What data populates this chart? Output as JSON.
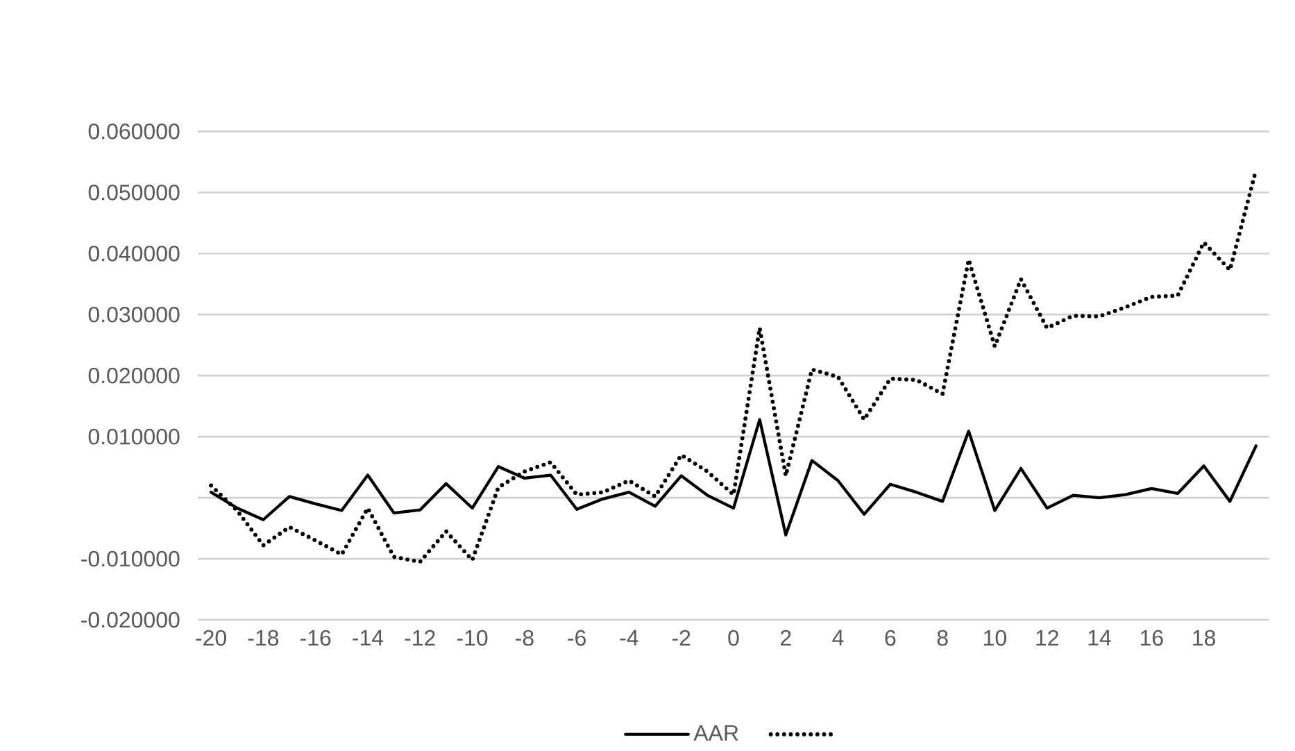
{
  "chart_data": {
    "type": "line",
    "categories": [
      "-20",
      null,
      "-18",
      null,
      "-16",
      null,
      "-14",
      null,
      "-12",
      null,
      "-10",
      null,
      "-8",
      null,
      "-6",
      null,
      "-4",
      null,
      "-2",
      null,
      "0",
      null,
      "2",
      null,
      "4",
      null,
      "6",
      null,
      "8",
      null,
      "10",
      null,
      "12",
      null,
      "14",
      null,
      "16",
      null,
      "18",
      null,
      null
    ],
    "series": [
      {
        "name": "AAR",
        "color": "#000000",
        "line_style": "solid",
        "values": [
          0.0009,
          -0.0017,
          -0.0036,
          0.0002,
          -0.001,
          -0.0021,
          0.0037,
          -0.0025,
          -0.002,
          0.0023,
          -0.0017,
          0.0051,
          0.0032,
          0.0037,
          -0.0019,
          -0.0002,
          0.0009,
          -0.0014,
          0.0036,
          0.0004,
          -0.0017,
          0.0128,
          -0.0061,
          0.0061,
          0.0028,
          -0.0027,
          0.0022,
          0.0009,
          -0.0006,
          0.0109,
          -0.0021,
          0.0048,
          -0.0017,
          0.0004,
          0.0,
          0.0005,
          0.0015,
          0.0007,
          0.0052,
          -0.0006,
          0.0085
        ]
      },
      {
        "color": "#000000",
        "line_style": "dotted",
        "values": [
          0.002,
          -0.0021,
          -0.0078,
          -0.0048,
          -0.007,
          -0.0093,
          -0.0017,
          -0.0097,
          -0.0105,
          -0.0055,
          -0.0102,
          0.0017,
          0.0043,
          0.0058,
          0.0005,
          0.0009,
          0.0028,
          0.0002,
          0.007,
          0.0043,
          0.0005,
          0.0278,
          0.0036,
          0.021,
          0.0198,
          0.0128,
          0.0195,
          0.0193,
          0.017,
          0.039,
          0.0248,
          0.0358,
          0.0278,
          0.0298,
          0.0297,
          0.0312,
          0.0329,
          0.0331,
          0.0418,
          0.0373,
          0.0537
        ]
      }
    ],
    "ylim": [
      -0.02,
      0.06
    ],
    "yticks": [
      {
        "value": -0.02,
        "label": "-0.020000"
      },
      {
        "value": -0.01,
        "label": "-0.010000"
      },
      {
        "value": 0,
        "label": null
      },
      {
        "value": 0.01,
        "label": "0.010000"
      },
      {
        "value": 0.02,
        "label": "0.020000"
      },
      {
        "value": 0.03,
        "label": "0.030000"
      },
      {
        "value": 0.04,
        "label": "0.040000"
      },
      {
        "value": 0.05,
        "label": "0.050000"
      },
      {
        "value": 0.06,
        "label": "0.060000"
      }
    ],
    "grid": "y",
    "legend": "bottom"
  }
}
